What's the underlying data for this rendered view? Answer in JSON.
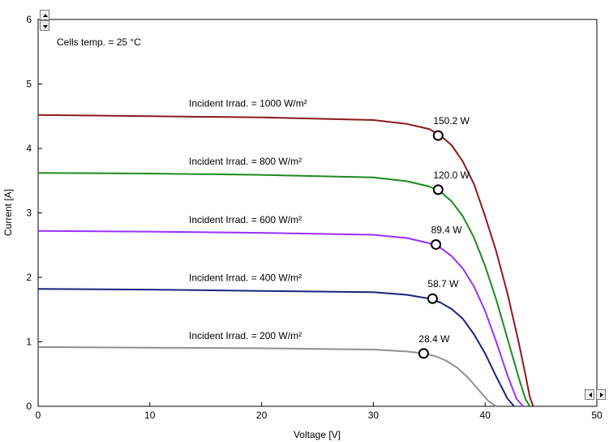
{
  "chart_data": {
    "type": "line",
    "title": "",
    "xlabel": "Voltage [V]",
    "ylabel": "Current [A]",
    "xlim": [
      0,
      50
    ],
    "ylim": [
      0,
      6
    ],
    "xticks": [
      0,
      10,
      20,
      30,
      40,
      50
    ],
    "yticks": [
      0,
      1,
      2,
      3,
      4,
      5,
      6
    ],
    "grid": false,
    "annotation": "Cells temp. = 25 °C",
    "series": [
      {
        "name": "Incident Irrad. = 1000 W/m²",
        "color": "#8b1a1a",
        "x": [
          0,
          10,
          20,
          30,
          33,
          35,
          36,
          37,
          38,
          39,
          40,
          41,
          42,
          43,
          43.6,
          44,
          44.3
        ],
        "y": [
          4.52,
          4.5,
          4.48,
          4.44,
          4.38,
          4.3,
          4.2,
          4.05,
          3.8,
          3.45,
          2.95,
          2.4,
          1.75,
          1.0,
          0.5,
          0.15,
          0
        ],
        "mpp": {
          "x": 35.8,
          "y": 4.2,
          "label": "150.2 W"
        }
      },
      {
        "name": "Incident Irrad. = 800 W/m²",
        "color": "#1f8a1f",
        "x": [
          0,
          10,
          20,
          30,
          33,
          35,
          36,
          37,
          38,
          39,
          40,
          41,
          42,
          43,
          43.6,
          44
        ],
        "y": [
          3.62,
          3.61,
          3.59,
          3.55,
          3.49,
          3.41,
          3.33,
          3.18,
          2.95,
          2.62,
          2.18,
          1.65,
          1.05,
          0.45,
          0.12,
          0
        ],
        "mpp": {
          "x": 35.8,
          "y": 3.36,
          "label": "120.0 W"
        }
      },
      {
        "name": "Incident Irrad. = 600 W/m²",
        "color": "#9b30ff",
        "x": [
          0,
          10,
          20,
          30,
          33,
          35,
          36,
          37,
          38,
          39,
          40,
          41,
          42,
          42.8,
          43.4
        ],
        "y": [
          2.72,
          2.71,
          2.69,
          2.66,
          2.61,
          2.53,
          2.46,
          2.33,
          2.14,
          1.86,
          1.48,
          1.0,
          0.48,
          0.12,
          0
        ],
        "mpp": {
          "x": 35.6,
          "y": 2.51,
          "label": "89.4 W"
        }
      },
      {
        "name": "Incident Irrad. = 400 W/m²",
        "color": "#1a237e",
        "x": [
          0,
          10,
          20,
          30,
          33,
          35,
          36,
          37,
          38,
          39,
          40,
          41,
          42,
          42.6
        ],
        "y": [
          1.82,
          1.81,
          1.79,
          1.77,
          1.73,
          1.67,
          1.61,
          1.51,
          1.36,
          1.12,
          0.82,
          0.46,
          0.12,
          0
        ],
        "mpp": {
          "x": 35.3,
          "y": 1.67,
          "label": "58.7 W"
        }
      },
      {
        "name": "Incident Irrad. = 200 W/m²",
        "color": "#909090",
        "x": [
          0,
          10,
          20,
          30,
          33,
          34.5,
          35.5,
          36.5,
          37.5,
          38.5,
          39.5,
          40.3,
          41
        ],
        "y": [
          0.92,
          0.91,
          0.9,
          0.88,
          0.85,
          0.82,
          0.78,
          0.71,
          0.6,
          0.44,
          0.24,
          0.08,
          0
        ],
        "mpp": {
          "x": 34.5,
          "y": 0.82,
          "label": "28.4 W"
        }
      }
    ]
  }
}
